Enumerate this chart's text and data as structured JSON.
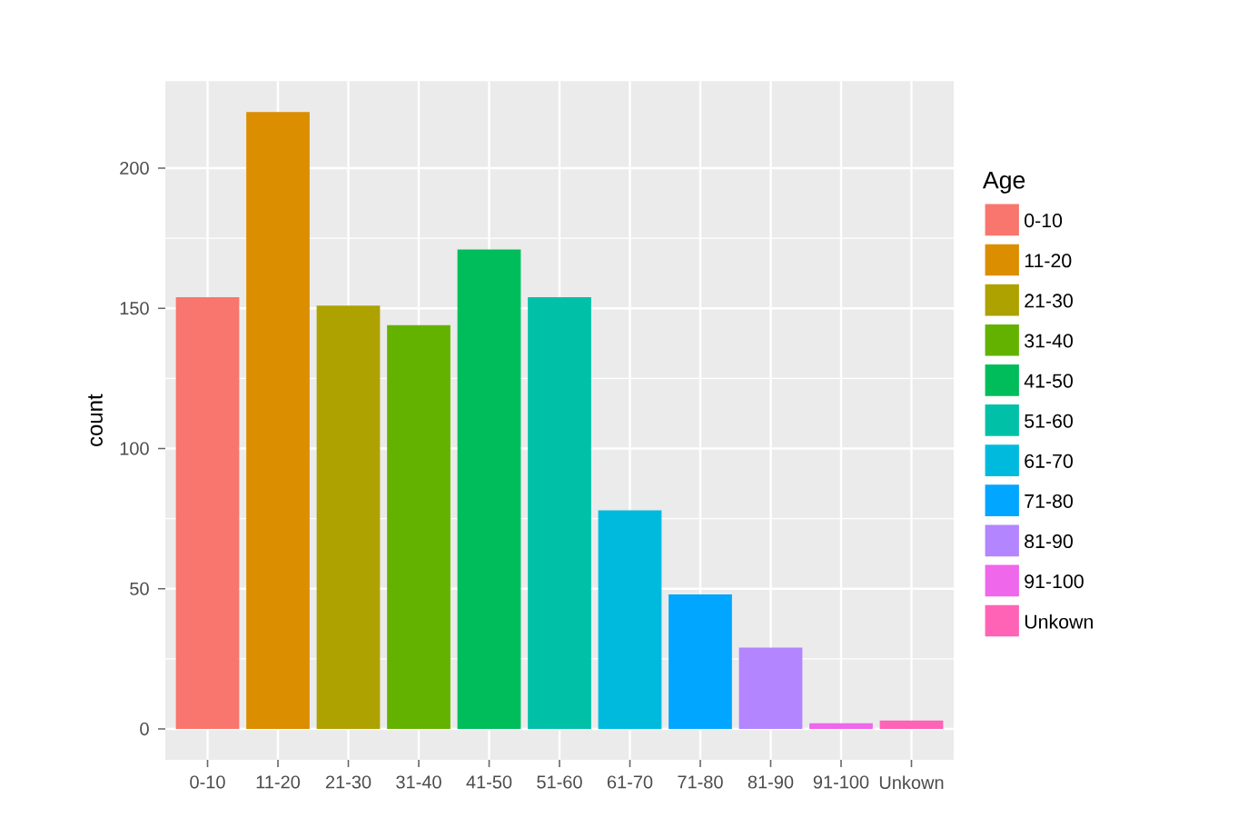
{
  "chart_data": {
    "type": "bar",
    "ylabel": "count",
    "legend_title": "Age",
    "categories": [
      "0-10",
      "11-20",
      "21-30",
      "31-40",
      "41-50",
      "51-60",
      "61-70",
      "71-80",
      "81-90",
      "91-100",
      "Unkown"
    ],
    "series": [
      {
        "name": "0-10",
        "color": "#f8766d",
        "values": [
          154,
          null,
          null,
          null,
          null,
          null,
          null,
          null,
          null,
          null,
          null
        ]
      },
      {
        "name": "11-20",
        "color": "#db8e00",
        "values": [
          null,
          220,
          null,
          null,
          null,
          null,
          null,
          null,
          null,
          null,
          null
        ]
      },
      {
        "name": "21-30",
        "color": "#aea200",
        "values": [
          null,
          null,
          151,
          null,
          null,
          null,
          null,
          null,
          null,
          null,
          null
        ]
      },
      {
        "name": "31-40",
        "color": "#64b200",
        "values": [
          null,
          null,
          null,
          144,
          null,
          null,
          null,
          null,
          null,
          null,
          null
        ]
      },
      {
        "name": "41-50",
        "color": "#00bd5c",
        "values": [
          null,
          null,
          null,
          null,
          171,
          null,
          null,
          null,
          null,
          null,
          null
        ]
      },
      {
        "name": "51-60",
        "color": "#00c1a7",
        "values": [
          null,
          null,
          null,
          null,
          null,
          154,
          null,
          null,
          null,
          null,
          null
        ]
      },
      {
        "name": "61-70",
        "color": "#00bade",
        "values": [
          null,
          null,
          null,
          null,
          null,
          null,
          78,
          null,
          null,
          null,
          null
        ]
      },
      {
        "name": "71-80",
        "color": "#00a6ff",
        "values": [
          null,
          null,
          null,
          null,
          null,
          null,
          null,
          48,
          null,
          null,
          null
        ]
      },
      {
        "name": "81-90",
        "color": "#b385ff",
        "values": [
          null,
          null,
          null,
          null,
          null,
          null,
          null,
          null,
          29,
          null,
          null
        ]
      },
      {
        "name": "91-100",
        "color": "#ef67eb",
        "values": [
          null,
          null,
          null,
          null,
          null,
          null,
          null,
          null,
          null,
          2,
          null
        ]
      },
      {
        "name": "Unkown",
        "color": "#ff63b6",
        "values": [
          null,
          null,
          null,
          null,
          null,
          null,
          null,
          null,
          null,
          null,
          3
        ]
      }
    ],
    "ylim": [
      -11,
      231
    ],
    "yticks": [
      0,
      50,
      100,
      150,
      200
    ],
    "grid": true,
    "legend": "right"
  }
}
